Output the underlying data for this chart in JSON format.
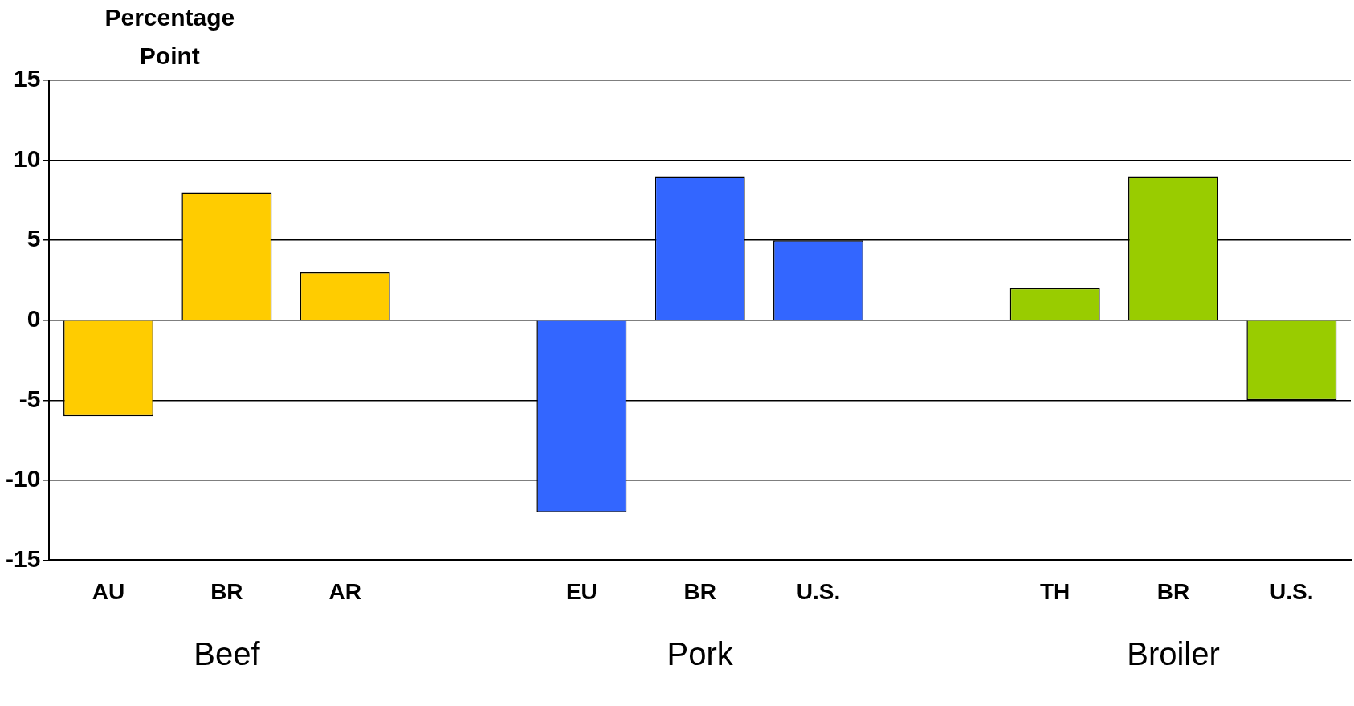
{
  "chart_data": {
    "type": "bar",
    "ylabel": "Percentage Point",
    "categories": [
      "AU",
      "BR",
      "AR",
      null,
      "EU",
      "BR",
      "U.S.",
      null,
      "TH",
      "BR",
      "U.S."
    ],
    "values": [
      -6,
      8,
      3,
      null,
      -12,
      9,
      5,
      null,
      2,
      9,
      -5
    ],
    "colors": [
      "#ffcc00",
      "#ffcc00",
      "#ffcc00",
      "#ffffff",
      "#3366ff",
      "#3366ff",
      "#3366ff",
      "#ffffff",
      "#99cc00",
      "#99cc00",
      "#99cc00"
    ],
    "ylim": [
      -15,
      15
    ],
    "yticks": [
      -15,
      -10,
      -5,
      0,
      5,
      10,
      15
    ],
    "grid": "y",
    "legend": false,
    "annotations": [
      "Beef",
      "Pork",
      "Broiler"
    ]
  }
}
